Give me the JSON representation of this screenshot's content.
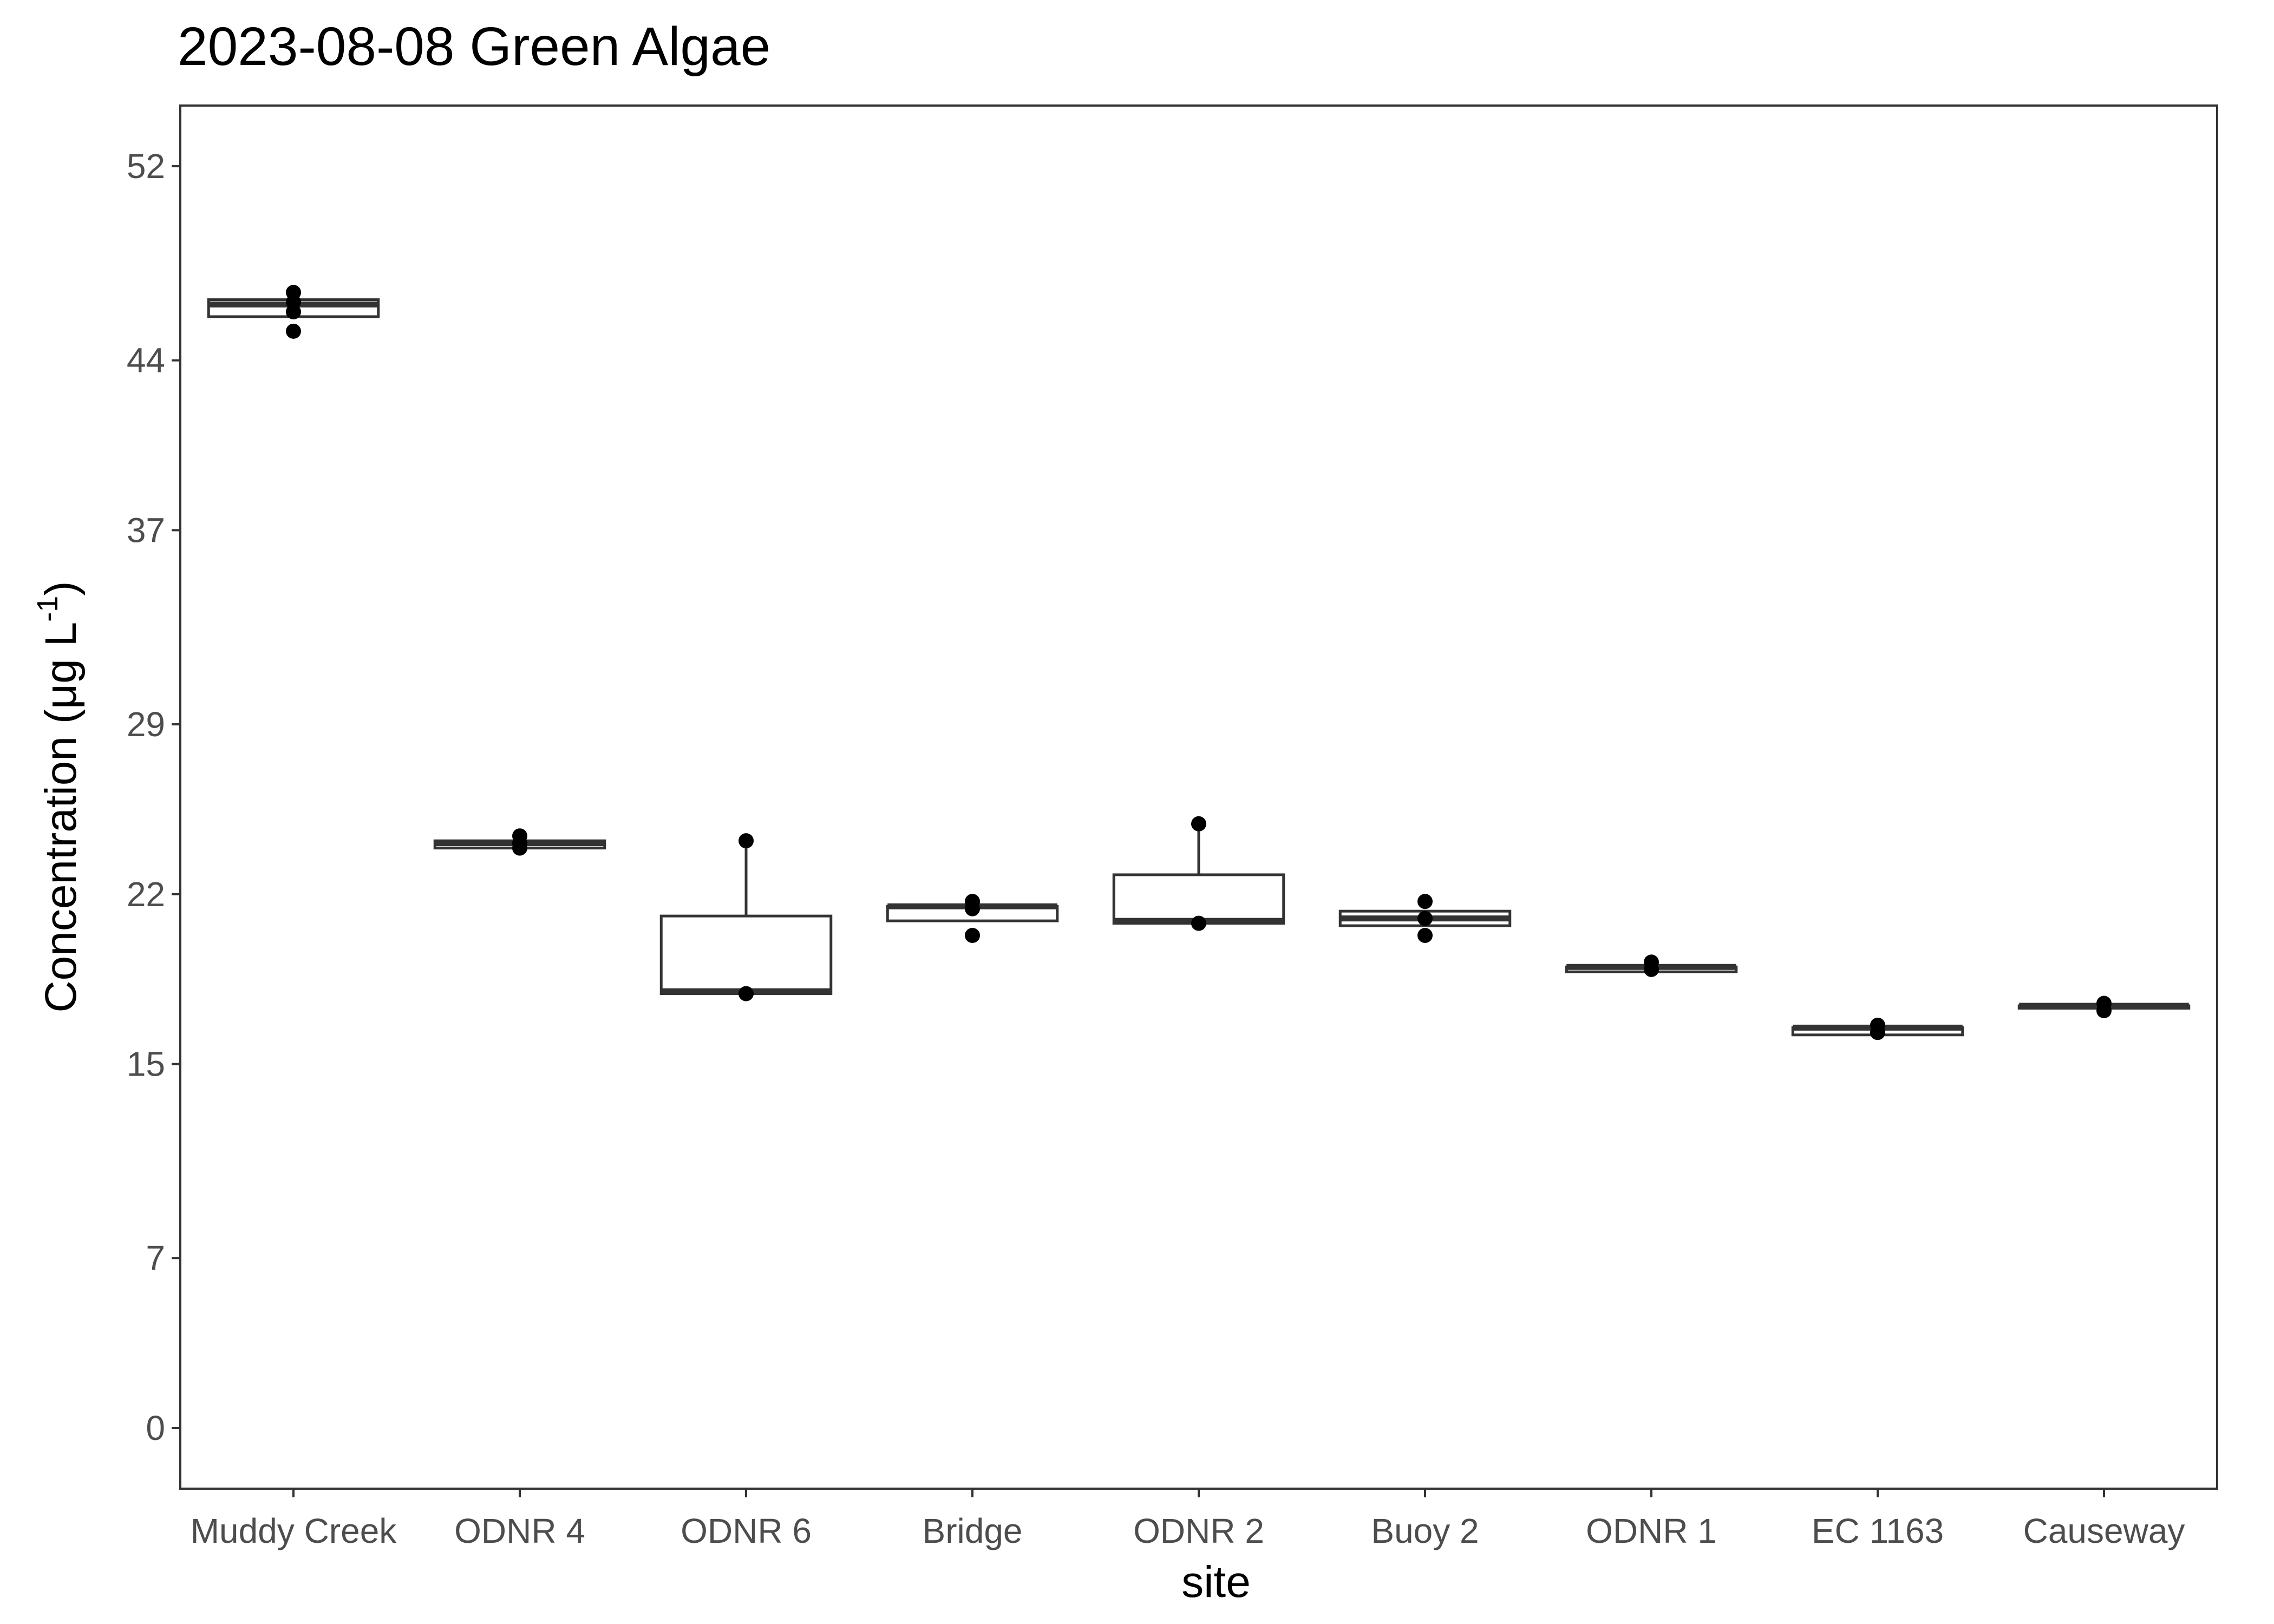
{
  "title": "2023-08-08 Green Algae",
  "chart_data": {
    "type": "box",
    "title": "2023-08-08 Green Algae",
    "xlabel": "site",
    "ylabel": {
      "main": "Concentration (μg L",
      "superscript": "-1",
      "close": ")"
    },
    "yticks": [
      0,
      7,
      15,
      22,
      29,
      37,
      44,
      52
    ],
    "ylim": [
      -2.5,
      54.5
    ],
    "grid": false,
    "categories": [
      "Muddy Creek",
      "ODNR 4",
      "ODNR 6",
      "Bridge",
      "ODNR 2",
      "Buoy 2",
      "ODNR 1",
      "EC 1163",
      "Causeway"
    ],
    "boxes": [
      {
        "site": "Muddy Creek",
        "min": 45.8,
        "q1": 45.8,
        "median": 46.3,
        "q3": 46.5,
        "max": 46.5,
        "points": [
          45.2,
          46.0,
          46.4,
          46.8
        ]
      },
      {
        "site": "ODNR 4",
        "min": 23.9,
        "q1": 23.9,
        "median": 24.1,
        "q3": 24.2,
        "max": 24.2,
        "points": [
          23.9,
          24.1,
          24.4
        ]
      },
      {
        "site": "ODNR 6",
        "min": 17.9,
        "q1": 17.9,
        "median": 18.0,
        "q3": 21.1,
        "max": 24.2,
        "points": [
          17.9,
          24.2
        ]
      },
      {
        "site": "Bridge",
        "min": 20.9,
        "q1": 20.9,
        "median": 21.5,
        "q3": 21.5,
        "max": 21.5,
        "points": [
          20.3,
          21.4,
          21.7
        ]
      },
      {
        "site": "ODNR 2",
        "min": 20.8,
        "q1": 20.8,
        "median": 20.9,
        "q3": 22.8,
        "max": 24.9,
        "points": [
          20.8,
          24.9
        ]
      },
      {
        "site": "Buoy 2",
        "min": 20.7,
        "q1": 20.7,
        "median": 21.0,
        "q3": 21.3,
        "max": 21.3,
        "points": [
          20.3,
          21.0,
          21.7
        ]
      },
      {
        "site": "ODNR 1",
        "min": 18.8,
        "q1": 18.8,
        "median": 19.0,
        "q3": 19.0,
        "max": 19.0,
        "points": [
          18.9,
          19.2
        ]
      },
      {
        "site": "EC 1163",
        "min": 16.2,
        "q1": 16.2,
        "median": 16.5,
        "q3": 16.5,
        "max": 16.5,
        "points": [
          16.3,
          16.6
        ]
      },
      {
        "site": "Causeway",
        "min": 17.3,
        "q1": 17.3,
        "median": 17.4,
        "q3": 17.4,
        "max": 17.4,
        "points": [
          17.2,
          17.5
        ]
      }
    ]
  }
}
